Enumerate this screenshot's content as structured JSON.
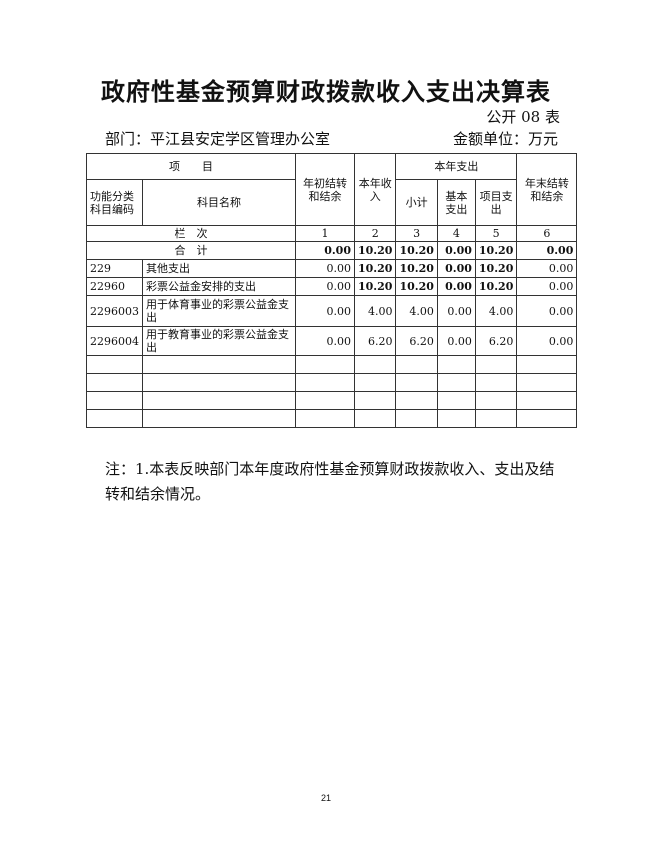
{
  "title": "政府性基金预算财政拨款收入支出决算表",
  "table_no": "公开 08 表",
  "department": "部门：平江县安定学区管理办公室",
  "unit": "金额单位：万元",
  "headers": {
    "item": "项　　目",
    "code": "功能分类科目编码",
    "name": "科目名称",
    "c1": "年初结转和结余",
    "c2": "本年收入",
    "exp": "本年支出",
    "c3": "小计",
    "c4": "基本支出",
    "c5": "项目支出",
    "c6": "年末结转和结余",
    "seq": "栏　次",
    "n1": "1",
    "n2": "2",
    "n3": "3",
    "n4": "4",
    "n5": "5",
    "n6": "6"
  },
  "total": {
    "label": "合　计",
    "c1": "0.00",
    "c2": "10.20",
    "c3": "10.20",
    "c4": "0.00",
    "c5": "10.20",
    "c6": "0.00"
  },
  "rows": [
    {
      "code": "229",
      "name": "其他支出",
      "c1": "0.00",
      "c2": "10.20",
      "c3": "10.20",
      "c4": "0.00",
      "c5": "10.20",
      "c6": "0.00"
    },
    {
      "code": "22960",
      "name": "彩票公益金安排的支出",
      "c1": "0.00",
      "c2": "10.20",
      "c3": "10.20",
      "c4": "0.00",
      "c5": "10.20",
      "c6": "0.00"
    },
    {
      "code": "2296003",
      "name": "用于体育事业的彩票公益金支出",
      "c1": "0.00",
      "c2": "4.00",
      "c3": "4.00",
      "c4": "0.00",
      "c5": "4.00",
      "c6": "0.00"
    },
    {
      "code": "2296004",
      "name": "用于教育事业的彩票公益金支出",
      "c1": "0.00",
      "c2": "6.20",
      "c3": "6.20",
      "c4": "0.00",
      "c5": "6.20",
      "c6": "0.00"
    }
  ],
  "note": "注：1.本表反映部门本年度政府性基金预算财政拨款收入、支出及结转和结余情况。",
  "page_number": "21"
}
